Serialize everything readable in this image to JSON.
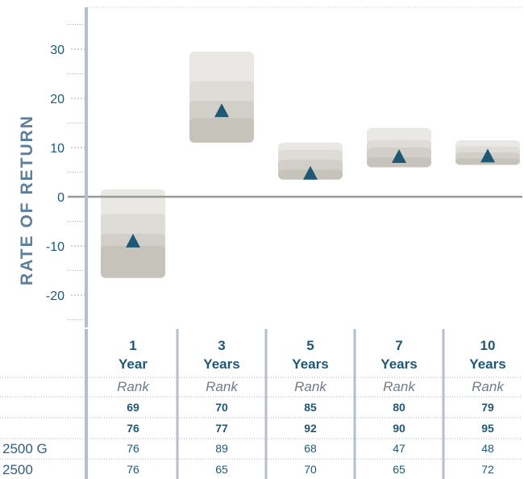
{
  "chart_data": {
    "type": "box",
    "ylabel": "RATE OF RETURN",
    "ylim": [
      -26,
      39
    ],
    "yticks": [
      30,
      20,
      10,
      0,
      -10,
      -20
    ],
    "periods": [
      {
        "num": "1",
        "word": "Year",
        "rank": "Rank",
        "bands": [
          1.5,
          -3.5,
          -7.5,
          -10.0,
          -16.5
        ],
        "marker": -9
      },
      {
        "num": "3",
        "word": "Years",
        "rank": "Rank",
        "bands": [
          29.5,
          23.5,
          19.5,
          16.0,
          11.0
        ],
        "marker": 17.5
      },
      {
        "num": "5",
        "word": "Years",
        "rank": "Rank",
        "bands": [
          11.0,
          9.5,
          7.5,
          5.5,
          3.5
        ],
        "marker": 4.8
      },
      {
        "num": "7",
        "word": "Years",
        "rank": "Rank",
        "bands": [
          14.0,
          11.5,
          10.0,
          8.0,
          6.0
        ],
        "marker": 8.2
      },
      {
        "num": "10",
        "word": "Years",
        "rank": "Rank",
        "bands": [
          11.5,
          10.2,
          9.0,
          7.8,
          6.5
        ],
        "marker": 8.3
      }
    ],
    "rows": [
      {
        "label": "",
        "bold": true,
        "values": [
          "69",
          "70",
          "85",
          "80",
          "79"
        ]
      },
      {
        "label": "",
        "bold": true,
        "values": [
          "76",
          "77",
          "92",
          "90",
          "95"
        ]
      },
      {
        "label": "2500 G",
        "bold": false,
        "values": [
          "76",
          "89",
          "68",
          "47",
          "48"
        ]
      },
      {
        "label": "2500",
        "bold": false,
        "values": [
          "76",
          "65",
          "70",
          "65",
          "72"
        ]
      }
    ],
    "grid": false
  },
  "colors": {
    "axis": "#b4bece",
    "label": "#5d7f9e",
    "marker": "#1f5874",
    "band1": "#e9e8e4",
    "band2": "#dedcd6",
    "band3": "#d1cfc7",
    "band4": "#c6c4ba",
    "zero_line": "#9a9a9a",
    "text": "#1f5874",
    "rowlabel": "#2d5f82"
  }
}
